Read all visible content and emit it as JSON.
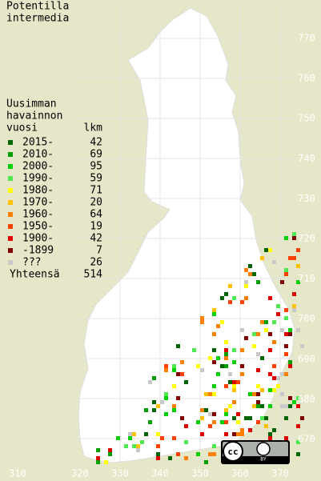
{
  "title": [
    "Potentilla",
    "intermedia"
  ],
  "legend": {
    "heading": [
      "Uusimman",
      "havainnon",
      "vuosi"
    ],
    "count_heading": "lkm",
    "entries": [
      {
        "label": "2015-",
        "count": "42",
        "color": "#006400"
      },
      {
        "label": "2010-",
        "count": "69",
        "color": "#00a000"
      },
      {
        "label": "2000-",
        "count": "95",
        "color": "#00d000"
      },
      {
        "label": "1990-",
        "count": "59",
        "color": "#50e850"
      },
      {
        "label": "1980-",
        "count": "71",
        "color": "#ffff00"
      },
      {
        "label": "1970-",
        "count": "20",
        "color": "#ffc000"
      },
      {
        "label": "1960-",
        "count": "64",
        "color": "#ff8000"
      },
      {
        "label": "1950-",
        "count": "19",
        "color": "#ff4000"
      },
      {
        "label": "1900-",
        "count": "42",
        "color": "#e00000"
      },
      {
        "label": "-1899",
        "count": "7",
        "color": "#800000"
      },
      {
        "label": "???",
        "count": "26",
        "color": "#c8c8c8"
      }
    ],
    "total": {
      "label": "Yhteensä",
      "count": "514"
    }
  },
  "x_labels": [
    "310",
    "320",
    "330",
    "340",
    "350",
    "360",
    "370"
  ],
  "y_labels": [
    "770",
    "760",
    "750",
    "740",
    "730",
    "720",
    "710",
    "700",
    "690",
    "680",
    "670"
  ],
  "badge": {
    "left": "cc",
    "right": "BY"
  }
}
